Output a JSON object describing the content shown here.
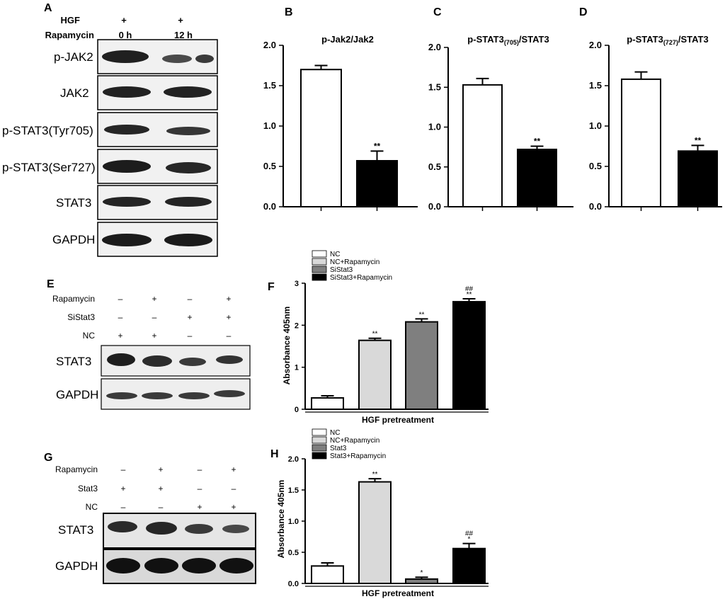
{
  "panels": {
    "A": {
      "letter": "A",
      "conditions": [
        {
          "label": "HGF",
          "values": [
            "+",
            "+"
          ]
        },
        {
          "label": "Rapamycin",
          "values": [
            "0 h",
            "12 h"
          ]
        }
      ],
      "blots": [
        "p-JAK2",
        "JAK2",
        "p-STAT3(Tyr705)",
        "p-STAT3(Ser727)",
        "STAT3",
        "GAPDH"
      ]
    },
    "B": {
      "letter": "B"
    },
    "C": {
      "letter": "C"
    },
    "D": {
      "letter": "D"
    },
    "E": {
      "letter": "E",
      "conditions": [
        {
          "label": "Rapamycin",
          "values": [
            "–",
            "+",
            "–",
            "+"
          ]
        },
        {
          "label": "SiStat3",
          "values": [
            "–",
            "–",
            "+",
            "+"
          ]
        },
        {
          "label": "NC",
          "values": [
            "+",
            "+",
            "–",
            "–"
          ]
        }
      ],
      "blots": [
        "STAT3",
        "GAPDH"
      ]
    },
    "F": {
      "letter": "F"
    },
    "G": {
      "letter": "G",
      "conditions": [
        {
          "label": "Rapamycin",
          "values": [
            "–",
            "+",
            "–",
            "+"
          ]
        },
        {
          "label": "Stat3",
          "values": [
            "+",
            "+",
            "–",
            "–"
          ]
        },
        {
          "label": "NC",
          "values": [
            "–",
            "–",
            "+",
            "+"
          ]
        }
      ],
      "blots": [
        "STAT3",
        "GAPDH"
      ]
    },
    "H": {
      "letter": "H"
    }
  },
  "chart_data": [
    {
      "id": "B",
      "type": "bar",
      "title_parts": {
        "main": "p-Jak2/Jak2",
        "sub": "",
        "rest": ""
      },
      "categories": [
        "",
        ""
      ],
      "values": [
        1.7,
        0.57
      ],
      "errors": [
        0.05,
        0.12
      ],
      "colors": [
        "#ffffff",
        "#000000"
      ],
      "significance": [
        "",
        "**"
      ],
      "ylim": [
        0,
        2.0
      ],
      "yticks": [
        "0.0",
        "0.5",
        "1.0",
        "1.5",
        "2.0"
      ]
    },
    {
      "id": "C",
      "type": "bar",
      "title_parts": {
        "main": "p-STAT3",
        "sub": "(705)",
        "rest": "/STAT3"
      },
      "categories": [
        "",
        ""
      ],
      "values": [
        1.53,
        0.72
      ],
      "errors": [
        0.08,
        0.04
      ],
      "colors": [
        "#ffffff",
        "#000000"
      ],
      "significance": [
        "",
        "**"
      ],
      "ylim": [
        0,
        2.0
      ],
      "yticks": [
        "0.0",
        "0.5",
        "1.0",
        "1.5",
        "2.0"
      ]
    },
    {
      "id": "D",
      "type": "bar",
      "title_parts": {
        "main": "p-STAT3",
        "sub": "(727)",
        "rest": "/STAT3"
      },
      "categories": [
        "",
        ""
      ],
      "values": [
        1.58,
        0.69
      ],
      "errors": [
        0.09,
        0.07
      ],
      "colors": [
        "#ffffff",
        "#000000"
      ],
      "significance": [
        "",
        "**"
      ],
      "ylim": [
        0,
        2.0
      ],
      "yticks": [
        "0.0",
        "0.5",
        "1.0",
        "1.5",
        "2.0"
      ]
    },
    {
      "id": "F",
      "type": "bar",
      "ylabel": "Absorbance 405nm",
      "xlabel": "HGF pretreatment",
      "legend": [
        "NC",
        "NC+Rapamycin",
        "SiStat3",
        "SiStat3+Rapamycin"
      ],
      "values": [
        0.27,
        1.64,
        2.08,
        2.56
      ],
      "errors": [
        0.05,
        0.05,
        0.07,
        0.07
      ],
      "colors": [
        "#ffffff",
        "#d9d9d9",
        "#7f7f7f",
        "#000000"
      ],
      "significance": [
        "",
        "**",
        "**",
        "**"
      ],
      "significance2": [
        "",
        "",
        "",
        "##"
      ],
      "ylim": [
        0,
        3
      ],
      "yticks": [
        "0",
        "1",
        "2",
        "3"
      ]
    },
    {
      "id": "H",
      "type": "bar",
      "ylabel": "Absorbance 405nm",
      "xlabel": "HGF pretreatment",
      "legend": [
        "NC",
        "NC+Rapamycin",
        "Stat3",
        "Stat3+Rapamycin"
      ],
      "values": [
        0.28,
        1.63,
        0.07,
        0.56
      ],
      "errors": [
        0.05,
        0.05,
        0.03,
        0.08
      ],
      "colors": [
        "#ffffff",
        "#d9d9d9",
        "#7f7f7f",
        "#000000"
      ],
      "significance": [
        "",
        "**",
        "*",
        "*"
      ],
      "significance2": [
        "",
        "",
        "",
        "##"
      ],
      "ylim": [
        0,
        2.0
      ],
      "yticks": [
        "0.0",
        "0.5",
        "1.0",
        "1.5",
        "2.0"
      ]
    }
  ]
}
